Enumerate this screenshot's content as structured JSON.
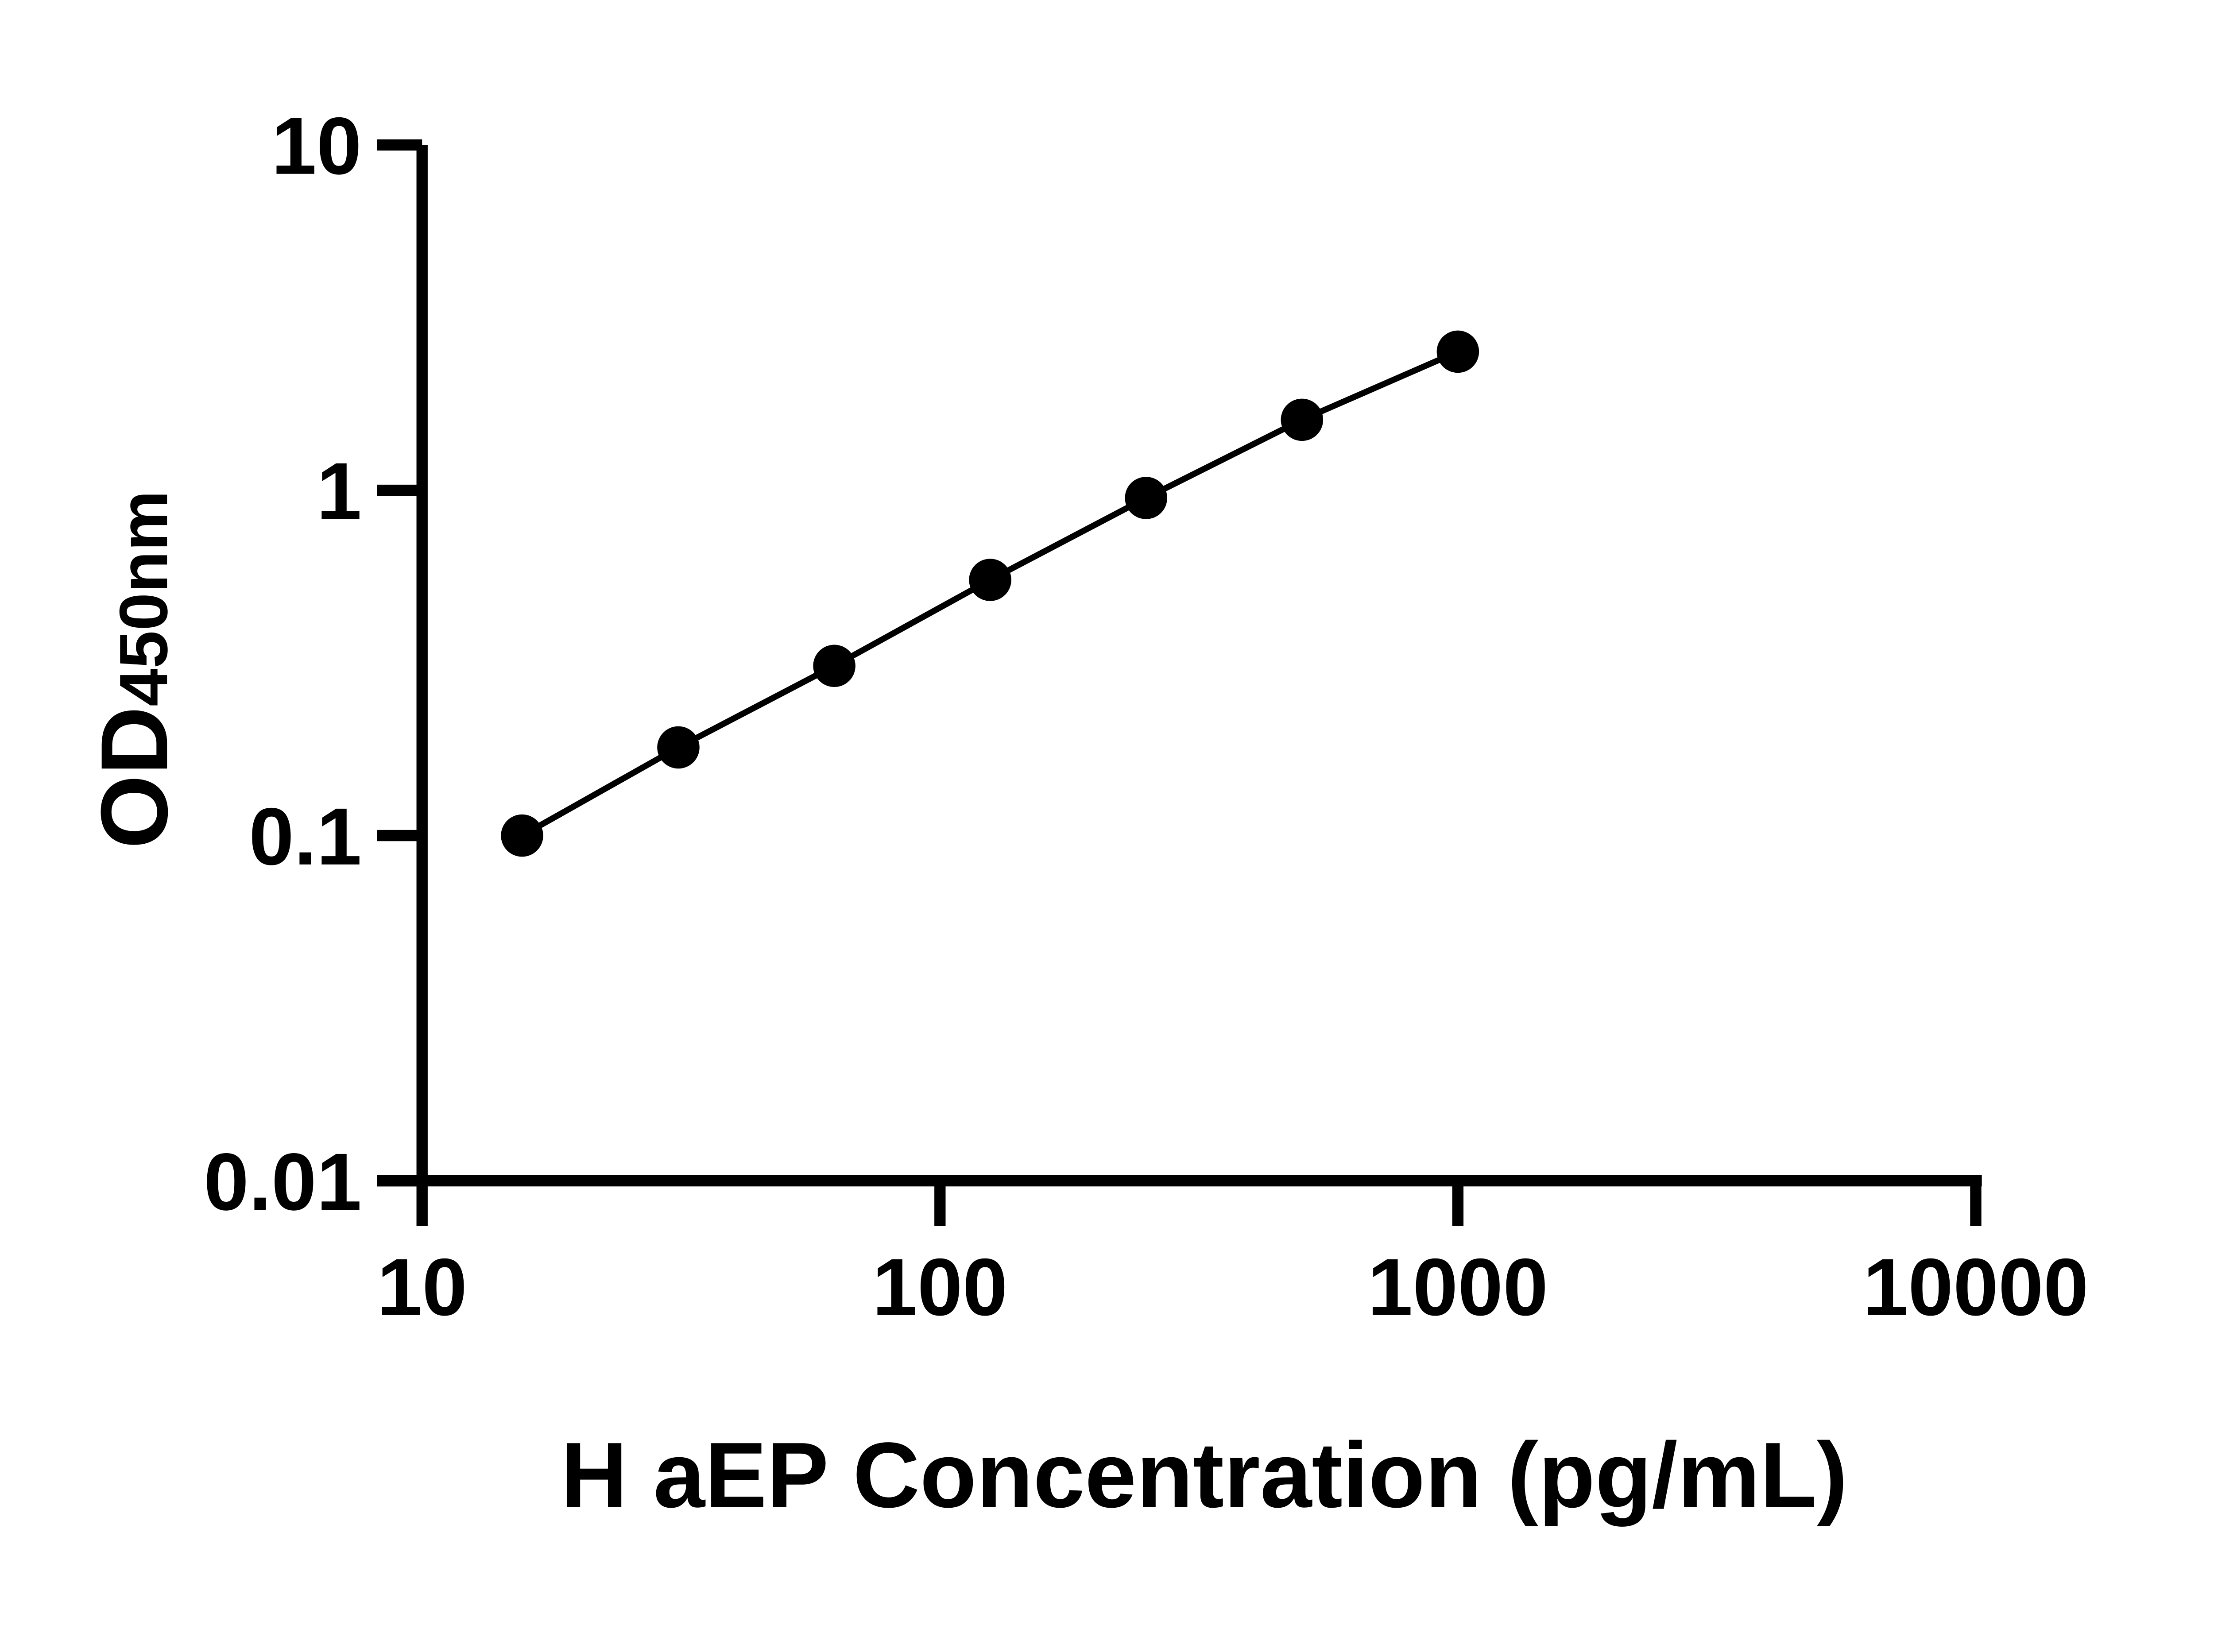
{
  "figure": {
    "background": "#ffffff",
    "ink": "#000000"
  },
  "chart_data": {
    "type": "line",
    "title": "",
    "xlabel": "H aEP Concentration (pg/mL)",
    "ylabel": "OD450nm",
    "ylabel_parts": {
      "main": "OD",
      "sub": "450nm"
    },
    "x_scale": "log10",
    "y_scale": "log10",
    "xlim": [
      10,
      10000
    ],
    "ylim": [
      0.01,
      10
    ],
    "x_ticks": [
      10,
      100,
      1000,
      10000
    ],
    "x_tick_labels": [
      "10",
      "100",
      "1000",
      "10000"
    ],
    "y_ticks": [
      10,
      1,
      0.1,
      0.01
    ],
    "y_tick_labels": [
      "10",
      "1",
      "0.1",
      "0.01"
    ],
    "grid": false,
    "legend": "none",
    "marker": "filled-circle",
    "line_style": "solid",
    "series": [
      {
        "color": "#000000",
        "points": [
          {
            "x": 15.6,
            "y": 0.1
          },
          {
            "x": 31.25,
            "y": 0.18
          },
          {
            "x": 62.5,
            "y": 0.31
          },
          {
            "x": 125,
            "y": 0.55
          },
          {
            "x": 250,
            "y": 0.95
          },
          {
            "x": 500,
            "y": 1.6
          },
          {
            "x": 1000,
            "y": 2.52
          }
        ]
      }
    ]
  }
}
